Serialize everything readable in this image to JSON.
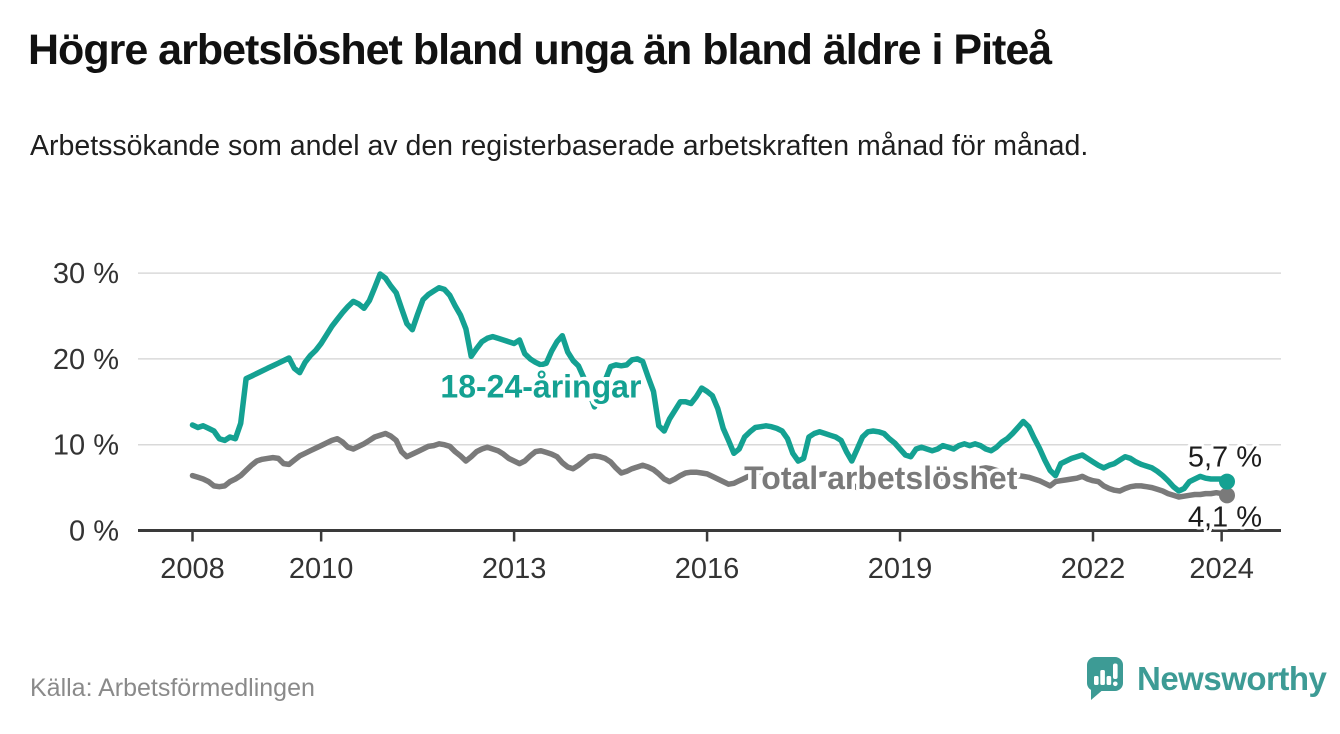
{
  "header": {
    "title": "Högre arbetslöshet bland unga än bland äldre i Piteå",
    "subtitle": "Arbetssökande som andel av den registerbaserade arbetskraften månad för månad."
  },
  "footer": {
    "source": "Källa: Arbetsförmedlingen",
    "brand": "Newsworthy",
    "brand_icon": "newsworthy-speech-bubble-bar-chart-icon",
    "brand_color": "#3d9b95"
  },
  "chart_data": {
    "type": "line",
    "title": "Högre arbetslöshet bland unga än bland äldre i Piteå",
    "subtitle": "Arbetssökande som andel av den registerbaserade arbetskraften månad för månad.",
    "x_unit": "month",
    "x_start": "2008-01",
    "x_end": "2024-02",
    "ylim": [
      0,
      30
    ],
    "grid": "horizontal",
    "legend_position": "inline-labels",
    "colors": {
      "gridline": "#d9d9d9",
      "axis": "#3a3a3a",
      "tick_text": "#333333"
    },
    "yticks": [
      {
        "value": 0,
        "label": "0 %"
      },
      {
        "value": 10,
        "label": "10 %"
      },
      {
        "value": 20,
        "label": "20 %"
      },
      {
        "value": 30,
        "label": "30 %"
      }
    ],
    "xticks": [
      {
        "year": 2008,
        "label": "2008"
      },
      {
        "year": 2010,
        "label": "2010"
      },
      {
        "year": 2013,
        "label": "2013"
      },
      {
        "year": 2016,
        "label": "2016"
      },
      {
        "year": 2019,
        "label": "2019"
      },
      {
        "year": 2022,
        "label": "2022"
      },
      {
        "year": 2024,
        "label": "2024"
      }
    ],
    "series": [
      {
        "name": "18-24-åringar",
        "color": "#14a192",
        "end_label": "5,7 %",
        "end_value": 5.7,
        "label_pos": {
          "month_index": 65,
          "value": 16.8
        },
        "values": [
          12.3,
          12.0,
          12.2,
          11.9,
          11.6,
          10.7,
          10.5,
          10.9,
          10.7,
          12.5,
          17.7,
          18.0,
          18.3,
          18.6,
          18.9,
          19.2,
          19.5,
          19.8,
          20.1,
          18.9,
          18.4,
          19.6,
          20.4,
          21.0,
          21.8,
          22.8,
          23.8,
          24.6,
          25.4,
          26.1,
          26.7,
          26.4,
          25.9,
          26.8,
          28.3,
          29.9,
          29.4,
          28.5,
          27.7,
          25.9,
          24.1,
          23.4,
          25.2,
          26.9,
          27.5,
          27.9,
          28.3,
          28.1,
          27.4,
          26.2,
          25.1,
          23.5,
          20.3,
          21.2,
          22.0,
          22.4,
          22.6,
          22.4,
          22.2,
          22.0,
          21.8,
          22.2,
          20.6,
          20.0,
          19.6,
          19.3,
          19.5,
          20.9,
          22.0,
          22.7,
          20.8,
          19.8,
          19.2,
          17.8,
          16.1,
          14.4,
          15.9,
          17.5,
          19.1,
          19.3,
          19.2,
          19.3,
          19.9,
          20.0,
          19.7,
          17.9,
          16.2,
          12.2,
          11.6,
          13.0,
          14.0,
          15.0,
          15.0,
          14.8,
          15.6,
          16.6,
          16.2,
          15.7,
          14.2,
          11.9,
          10.5,
          9.0,
          9.5,
          10.9,
          11.5,
          12.0,
          12.1,
          12.2,
          12.1,
          11.9,
          11.6,
          10.7,
          9.0,
          8.1,
          8.4,
          10.9,
          11.3,
          11.5,
          11.3,
          11.1,
          10.9,
          10.5,
          9.2,
          8.1,
          9.5,
          10.9,
          11.5,
          11.6,
          11.5,
          11.3,
          10.7,
          10.2,
          9.5,
          8.8,
          8.6,
          9.5,
          9.7,
          9.5,
          9.3,
          9.5,
          9.9,
          9.7,
          9.5,
          9.9,
          10.1,
          9.9,
          10.1,
          9.9,
          9.5,
          9.3,
          9.7,
          10.3,
          10.7,
          11.3,
          12.0,
          12.7,
          12.1,
          10.8,
          9.6,
          8.2,
          7.0,
          6.4,
          7.8,
          8.1,
          8.4,
          8.6,
          8.8,
          8.4,
          8.0,
          7.6,
          7.3,
          7.6,
          7.8,
          8.2,
          8.6,
          8.4,
          8.0,
          7.7,
          7.5,
          7.3,
          6.9,
          6.4,
          5.8,
          5.1,
          4.6,
          4.9,
          5.7,
          6.0,
          6.3,
          6.1,
          6.0,
          6.0,
          6.0,
          5.7
        ]
      },
      {
        "name": "Total arbetslöshet",
        "color": "#7a7a7a",
        "end_label": "4,1 %",
        "end_value": 4.1,
        "label_pos": {
          "month_index": 128.4,
          "value": 6.1
        },
        "values": [
          6.4,
          6.2,
          6.0,
          5.7,
          5.2,
          5.1,
          5.2,
          5.7,
          6.0,
          6.4,
          7.0,
          7.6,
          8.1,
          8.3,
          8.4,
          8.5,
          8.4,
          7.8,
          7.7,
          8.2,
          8.7,
          9.0,
          9.3,
          9.6,
          9.9,
          10.2,
          10.5,
          10.7,
          10.3,
          9.7,
          9.5,
          9.8,
          10.1,
          10.5,
          10.9,
          11.1,
          11.3,
          11.0,
          10.5,
          9.2,
          8.6,
          8.9,
          9.2,
          9.5,
          9.8,
          9.9,
          10.1,
          10.0,
          9.8,
          9.2,
          8.7,
          8.1,
          8.6,
          9.2,
          9.5,
          9.7,
          9.5,
          9.3,
          8.9,
          8.4,
          8.1,
          7.8,
          8.1,
          8.7,
          9.2,
          9.3,
          9.1,
          8.9,
          8.6,
          7.9,
          7.4,
          7.2,
          7.6,
          8.1,
          8.6,
          8.7,
          8.6,
          8.4,
          8.0,
          7.3,
          6.7,
          6.9,
          7.2,
          7.4,
          7.6,
          7.4,
          7.1,
          6.6,
          6.0,
          5.7,
          6.0,
          6.4,
          6.7,
          6.8,
          6.8,
          6.7,
          6.6,
          6.3,
          6.0,
          5.7,
          5.4,
          5.5,
          5.8,
          6.1,
          6.4,
          6.7,
          6.8,
          6.8,
          6.7,
          6.5,
          6.2,
          5.8,
          5.4,
          5.5,
          5.8,
          6.1,
          6.3,
          6.5,
          6.6,
          6.5,
          6.3,
          6.0,
          5.7,
          5.3,
          5.0,
          5.2,
          5.5,
          5.8,
          6.0,
          6.2,
          6.2,
          6.1,
          6.0,
          5.8,
          5.6,
          5.4,
          5.3,
          5.5,
          5.8,
          6.0,
          6.1,
          6.2,
          6.3,
          6.4,
          6.5,
          6.6,
          6.9,
          7.2,
          7.3,
          7.2,
          7.0,
          6.8,
          6.6,
          6.5,
          6.4,
          6.3,
          6.2,
          6.0,
          5.8,
          5.5,
          5.2,
          5.7,
          5.8,
          5.9,
          6.0,
          6.1,
          6.3,
          6.0,
          5.8,
          5.7,
          5.2,
          4.9,
          4.7,
          4.6,
          4.9,
          5.1,
          5.2,
          5.2,
          5.1,
          5.0,
          4.8,
          4.6,
          4.3,
          4.1,
          3.9,
          4.0,
          4.1,
          4.2,
          4.2,
          4.3,
          4.3,
          4.4,
          4.3,
          4.1
        ]
      }
    ]
  }
}
